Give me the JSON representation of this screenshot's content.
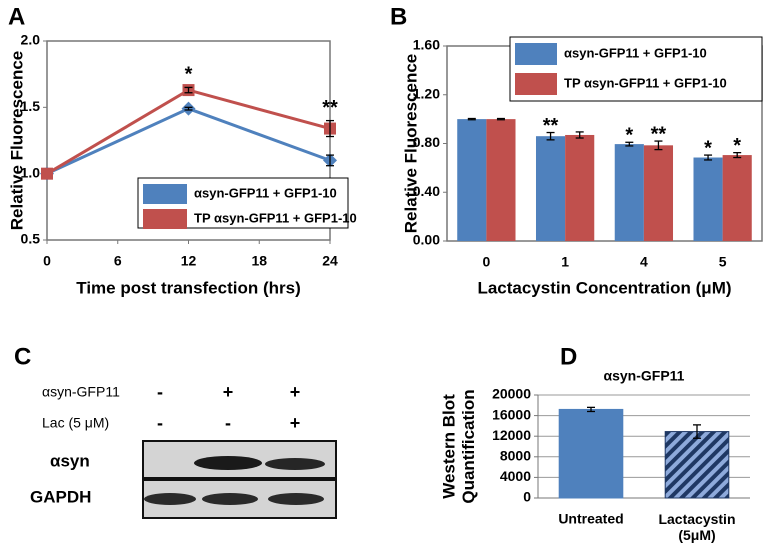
{
  "chart_data": [
    {
      "type": "line",
      "panel": "A",
      "x": [
        0,
        12,
        24
      ],
      "xlim": [
        0,
        24
      ],
      "xticks": [
        0,
        6,
        12,
        18,
        24
      ],
      "ylim": [
        0.5,
        2.0
      ],
      "yticks": [
        0.5,
        {
          "value": 1.0,
          "label": "1.0"
        },
        1.5,
        {
          "value": 2.0,
          "label": "2.0"
        }
      ],
      "xlabel": "Time post transfection (hrs)",
      "ylabel": "Relative Fluorescence",
      "legend": "lower right",
      "grid": false,
      "series": [
        {
          "name": "αsyn-GFP11 + GFP1-10",
          "color": "#4f81bd",
          "marker": "diamond",
          "values": [
            1.0,
            1.49,
            1.1
          ],
          "errors": [
            0,
            0.01,
            0.04
          ],
          "significance": [
            null,
            "*",
            null
          ]
        },
        {
          "name": "TP αsyn-GFP11 + GFP1-10",
          "color": "#c0504d",
          "marker": "square",
          "values": [
            1.0,
            1.63,
            1.34
          ],
          "errors": [
            0,
            0.02,
            0.06
          ],
          "significance": [
            null,
            "*",
            "**"
          ]
        }
      ]
    },
    {
      "type": "bar",
      "panel": "B",
      "categories": [
        "0",
        "1",
        "4",
        "5"
      ],
      "ylim": [
        0,
        1.6
      ],
      "yticks": [
        {
          "value": 0,
          "label": "0.00"
        },
        {
          "value": 0.4,
          "label": "0.40"
        },
        {
          "value": 0.8,
          "label": "0.80"
        },
        {
          "value": 1.2,
          "label": "1.20"
        },
        {
          "value": 1.6,
          "label": "1.60"
        }
      ],
      "xlabel": "Lactacystin Concentration (μM)",
      "ylabel": "Relative Fluorescence",
      "legend": "upper right",
      "grid": false,
      "series": [
        {
          "name": "αsyn-GFP11 + GFP1-10",
          "color": "#4f81bd",
          "values": [
            1.0,
            0.86,
            0.795,
            0.685
          ],
          "errors": [
            0.005,
            0.03,
            0.015,
            0.02
          ],
          "significance": [
            null,
            "**",
            "*",
            "*"
          ]
        },
        {
          "name": "TP αsyn-GFP11 + GFP1-10",
          "color": "#c0504d",
          "values": [
            1.0,
            0.87,
            0.785,
            0.705
          ],
          "errors": [
            0.005,
            0.025,
            0.035,
            0.02
          ],
          "significance": [
            null,
            null,
            "**",
            "*"
          ]
        }
      ]
    },
    {
      "type": "bar",
      "panel": "D",
      "title": "αsyn-GFP11",
      "categories": [
        "Untreated",
        "Lactacystin\n(5μM)"
      ],
      "values": [
        17200,
        12900
      ],
      "errors": [
        400,
        1300
      ],
      "colors": [
        "#4f81bd",
        "#1f3864"
      ],
      "hatch": [
        false,
        true
      ],
      "ylim": [
        0,
        20000
      ],
      "yticks": [
        0,
        4000,
        8000,
        12000,
        16000,
        20000
      ],
      "ylabel": "Western Blot\nQuantification",
      "grid": true
    }
  ],
  "blot": {
    "panel": "C",
    "conditions": [
      {
        "label": "αsyn-GFP11",
        "lanes": [
          "-",
          "+",
          "+"
        ]
      },
      {
        "label": "Lac (5 μM)",
        "lanes": [
          "-",
          "-",
          "+"
        ]
      }
    ],
    "bands": [
      "αsyn",
      "GAPDH"
    ]
  }
}
